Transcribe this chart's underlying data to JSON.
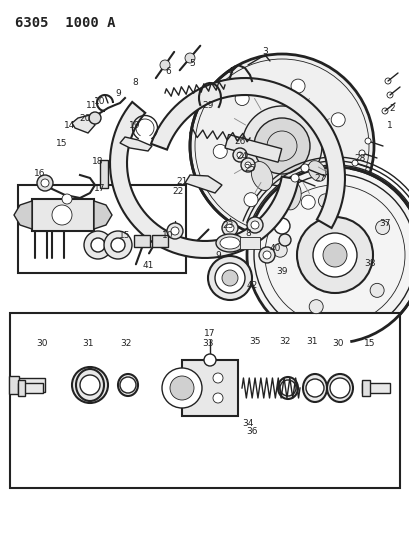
{
  "title": "6305  1000 A",
  "title_fontsize": 10,
  "title_fontweight": "bold",
  "bg_color": "#ffffff",
  "line_color": "#222222",
  "fig_width": 4.1,
  "fig_height": 5.33,
  "dpi": 100
}
